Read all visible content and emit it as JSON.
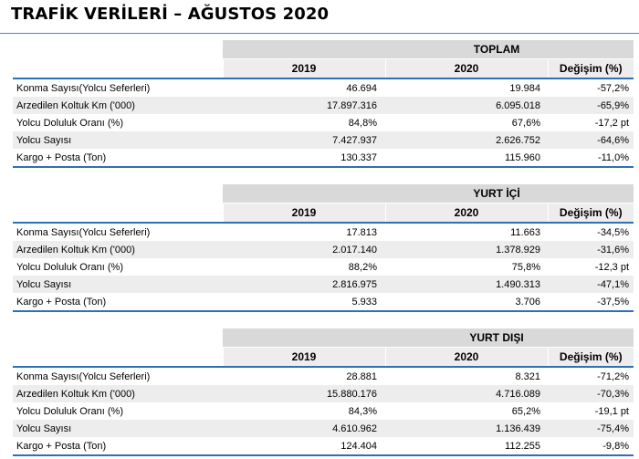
{
  "title": "TRAFİK VERİLERİ – AĞUSTOS 2020",
  "headers": {
    "year1": "2019",
    "year2": "2020",
    "change": "Değişim (%)"
  },
  "sections": [
    {
      "name": "TOPLAM",
      "rows": [
        {
          "label": "Konma Sayısı(Yolcu Seferleri)",
          "y2019": "46.694",
          "y2020": "19.984",
          "change": "-57,2%"
        },
        {
          "label": "Arzedilen Koltuk Km ('000)",
          "y2019": "17.897.316",
          "y2020": "6.095.018",
          "change": "-65,9%"
        },
        {
          "label": "Yolcu Doluluk Oranı (%)",
          "y2019": "84,8%",
          "y2020": "67,6%",
          "change": "-17,2 pt"
        },
        {
          "label": "Yolcu Sayısı",
          "y2019": "7.427.937",
          "y2020": "2.626.752",
          "change": "-64,6%"
        },
        {
          "label": "Kargo + Posta (Ton)",
          "y2019": "130.337",
          "y2020": "115.960",
          "change": "-11,0%"
        }
      ]
    },
    {
      "name": "YURT İÇİ",
      "rows": [
        {
          "label": "Konma Sayısı(Yolcu Seferleri)",
          "y2019": "17.813",
          "y2020": "11.663",
          "change": "-34,5%"
        },
        {
          "label": "Arzedilen Koltuk Km ('000)",
          "y2019": "2.017.140",
          "y2020": "1.378.929",
          "change": "-31,6%"
        },
        {
          "label": "Yolcu Doluluk Oranı (%)",
          "y2019": "88,2%",
          "y2020": "75,8%",
          "change": "-12,3 pt"
        },
        {
          "label": "Yolcu Sayısı",
          "y2019": "2.816.975",
          "y2020": "1.490.313",
          "change": "-47,1%"
        },
        {
          "label": "Kargo + Posta (Ton)",
          "y2019": "5.933",
          "y2020": "3.706",
          "change": "-37,5%"
        }
      ]
    },
    {
      "name": "YURT DIŞI",
      "rows": [
        {
          "label": "Konma Sayısı(Yolcu Seferleri)",
          "y2019": "28.881",
          "y2020": "8.321",
          "change": "-71,2%"
        },
        {
          "label": "Arzedilen Koltuk Km ('000)",
          "y2019": "15.880.176",
          "y2020": "4.716.089",
          "change": "-70,3%"
        },
        {
          "label": "Yolcu Doluluk Oranı (%)",
          "y2019": "84,3%",
          "y2020": "65,2%",
          "change": "-19,1 pt"
        },
        {
          "label": "Yolcu Sayısı",
          "y2019": "4.610.962",
          "y2020": "1.136.439",
          "change": "-75,4%"
        },
        {
          "label": "Kargo + Posta (Ton)",
          "y2019": "124.404",
          "y2020": "112.255",
          "change": "-9,8%"
        }
      ]
    }
  ]
}
